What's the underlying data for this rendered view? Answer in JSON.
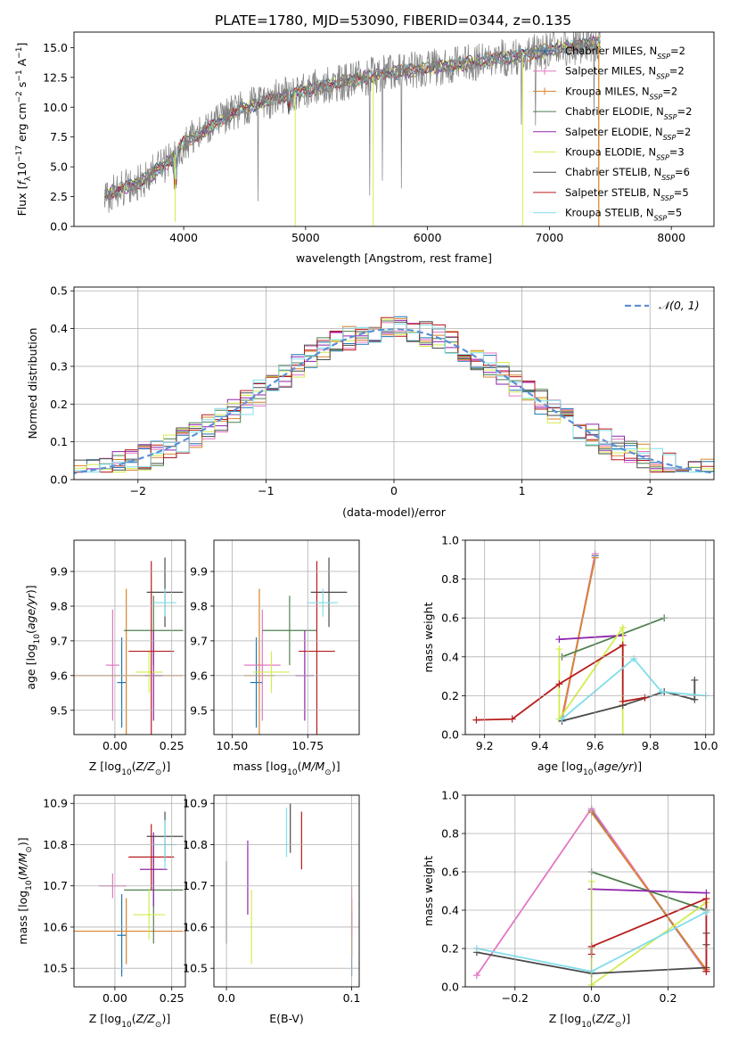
{
  "title": "PLATE=1780, MJD=53090, FIBERID=0344, z=0.135",
  "colors": {
    "Chabrier MILES": "#1f77b4",
    "Salpeter MILES": "#e377c2",
    "Kroupa MILES": "#d9822b",
    "Chabrier ELODIE": "#4f7f4f",
    "Salpeter ELODIE": "#8e24aa",
    "Kroupa ELODIE": "#d4ec4e",
    "Chabrier STELIB": "#4a4a4a",
    "Salpeter STELIB": "#b71c1c",
    "Kroupa STELIB": "#80deea",
    "normal": "#5b8fd6"
  },
  "chart_data": [
    {
      "id": "spectrum",
      "type": "line",
      "title": "PLATE=1780, MJD=53090, FIBERID=0344, z=0.135",
      "xlabel": "wavelength [Angstrom, rest frame]",
      "ylabel": "Flux [f",
      "ylabel_parts": [
        "Flux [f",
        "λ",
        "10",
        "−17",
        " erg cm",
        "−2",
        " s",
        "−1",
        " A",
        "−1",
        "]"
      ],
      "xlim": [
        3100,
        8350
      ],
      "ylim": [
        0,
        16.3
      ],
      "xticks": [
        "4000",
        "5000",
        "6000",
        "7000",
        "8000"
      ],
      "xtick_values": [
        4000,
        5000,
        6000,
        7000,
        8000
      ],
      "yticks": [
        "0.0",
        "2.5",
        "5.0",
        "7.5",
        "10.0",
        "12.5",
        "15.0"
      ],
      "ytick_values": [
        0,
        2.5,
        5,
        7.5,
        10,
        12.5,
        15
      ],
      "continuum": {
        "x": [
          3350,
          3500,
          3700,
          3900,
          4000,
          4200,
          4400,
          4600,
          4800,
          5000,
          5200,
          5400,
          5600,
          5800,
          6000,
          6200,
          6400,
          6600,
          6800,
          7000,
          7200,
          7400
        ],
        "y": [
          2.6,
          3.2,
          4.1,
          5.6,
          7.0,
          8.2,
          9.5,
          10.3,
          10.9,
          11.4,
          11.9,
          12.3,
          12.7,
          13.0,
          13.3,
          13.5,
          13.8,
          14.1,
          14.4,
          14.8,
          15.1,
          15.4
        ]
      },
      "series": [
        {
          "name": "Chabrier MILES",
          "label_suffix": "=2"
        },
        {
          "name": "Salpeter MILES",
          "label_suffix": "=2"
        },
        {
          "name": "Kroupa MILES",
          "label_suffix": "=2"
        },
        {
          "name": "Chabrier ELODIE",
          "label_suffix": "=2"
        },
        {
          "name": "Salpeter ELODIE",
          "label_suffix": "=2"
        },
        {
          "name": "Kroupa ELODIE",
          "label_suffix": "=3"
        },
        {
          "name": "Chabrier STELIB",
          "label_suffix": "=6"
        },
        {
          "name": "Salpeter STELIB",
          "label_suffix": "=5"
        },
        {
          "name": "Kroupa STELIB",
          "label_suffix": "=5"
        }
      ],
      "legend_placement": "right",
      "grid": false
    },
    {
      "id": "residuals",
      "type": "histogram",
      "xlabel": "(data-model)/error",
      "ylabel": "Normed distribution",
      "xlim": [
        -2.5,
        2.5
      ],
      "ylim": [
        0,
        0.51
      ],
      "xticks": [
        "−2",
        "−1",
        "0",
        "1",
        "2"
      ],
      "xtick_values": [
        -2,
        -1,
        0,
        1,
        2
      ],
      "yticks": [
        "0.0",
        "0.1",
        "0.2",
        "0.3",
        "0.4",
        "0.5"
      ],
      "ytick_values": [
        0,
        0.1,
        0.2,
        0.3,
        0.4,
        0.5
      ],
      "bin_width": 0.1,
      "legend": "𝒩(0, 1)",
      "legend_placement": "top-right",
      "grid": true
    },
    {
      "id": "age-vs-Z",
      "type": "errorbar",
      "xlabel": "Z [log10(Z/Z⊙)]",
      "ylabel": "age [log10(age/yr)]",
      "xlim": [
        -0.18,
        0.31
      ],
      "ylim": [
        9.43,
        9.99
      ],
      "xticks": [
        "0.00",
        "0.25"
      ],
      "xtick_values": [
        0,
        0.25
      ],
      "yticks": [
        "9.5",
        "9.6",
        "9.7",
        "9.8",
        "9.9"
      ],
      "ytick_values": [
        9.5,
        9.6,
        9.7,
        9.8,
        9.9
      ],
      "points": [
        {
          "series": "Chabrier MILES",
          "x": 0.03,
          "xerr": 0.02,
          "y": 9.58,
          "yerr": 0.13
        },
        {
          "series": "Salpeter MILES",
          "x": -0.01,
          "xerr": 0.03,
          "y": 9.63,
          "yerr": 0.16
        },
        {
          "series": "Kroupa MILES",
          "x": 0.05,
          "xerr": 0.25,
          "y": 9.6,
          "yerr": 0.25
        },
        {
          "series": "Chabrier ELODIE",
          "x": 0.17,
          "xerr": 0.13,
          "y": 9.73,
          "yerr": 0.1
        },
        {
          "series": "Salpeter ELODIE",
          "x": 0.17,
          "xerr": 0.04,
          "y": 9.6,
          "yerr": 0.13
        },
        {
          "series": "Kroupa ELODIE",
          "x": 0.15,
          "xerr": 0.06,
          "y": 9.61,
          "yerr": 0.06
        },
        {
          "series": "Chabrier STELIB",
          "x": 0.22,
          "xerr": 0.08,
          "y": 9.84,
          "yerr": 0.1
        },
        {
          "series": "Salpeter STELIB",
          "x": 0.16,
          "xerr": 0.1,
          "y": 9.67,
          "yerr": 0.26
        },
        {
          "series": "Kroupa STELIB",
          "x": 0.22,
          "xerr": 0.05,
          "y": 9.81,
          "yerr": 0.04
        }
      ]
    },
    {
      "id": "age-vs-mass",
      "type": "errorbar",
      "xlabel": "mass [log10(M/M⊙)]",
      "ylabel": "",
      "xlim": [
        10.44,
        10.92
      ],
      "ylim": [
        9.43,
        9.99
      ],
      "xticks": [
        "10.50",
        "10.75"
      ],
      "xtick_values": [
        10.5,
        10.75
      ],
      "yticks": [
        "9.5",
        "9.6",
        "9.7",
        "9.8",
        "9.9"
      ],
      "ytick_values": [
        9.5,
        9.6,
        9.7,
        9.8,
        9.9
      ],
      "points": [
        {
          "series": "Chabrier MILES",
          "x": 10.58,
          "xerr": 0.02,
          "y": 9.58,
          "yerr": 0.13
        },
        {
          "series": "Salpeter MILES",
          "x": 10.6,
          "xerr": 0.06,
          "y": 9.63,
          "yerr": 0.16
        },
        {
          "series": "Kroupa MILES",
          "x": 10.59,
          "xerr": 0.05,
          "y": 9.6,
          "yerr": 0.25
        },
        {
          "series": "Chabrier ELODIE",
          "x": 10.69,
          "xerr": 0.09,
          "y": 9.73,
          "yerr": 0.1
        },
        {
          "series": "Salpeter ELODIE",
          "x": 10.74,
          "xerr": 0.03,
          "y": 9.6,
          "yerr": 0.13
        },
        {
          "series": "Kroupa ELODIE",
          "x": 10.63,
          "xerr": 0.06,
          "y": 9.61,
          "yerr": 0.06
        },
        {
          "series": "Chabrier STELIB",
          "x": 10.82,
          "xerr": 0.06,
          "y": 9.84,
          "yerr": 0.1
        },
        {
          "series": "Salpeter STELIB",
          "x": 10.78,
          "xerr": 0.06,
          "y": 9.67,
          "yerr": 0.26
        },
        {
          "series": "Kroupa STELIB",
          "x": 10.8,
          "xerr": 0.05,
          "y": 9.81,
          "yerr": 0.04
        }
      ]
    },
    {
      "id": "mass-weight-vs-age",
      "type": "line",
      "xlabel": "age [log10(age/yr)]",
      "ylabel": "mass weight",
      "xlim": [
        9.13,
        10.03
      ],
      "ylim": [
        0,
        1.0
      ],
      "xticks": [
        "9.2",
        "9.4",
        "9.6",
        "9.8",
        "10.0"
      ],
      "xtick_values": [
        9.2,
        9.4,
        9.6,
        9.8,
        10.0
      ],
      "yticks": [
        "0.0",
        "0.2",
        "0.4",
        "0.6",
        "0.8",
        "1.0"
      ],
      "ytick_values": [
        0,
        0.2,
        0.4,
        0.6,
        0.8,
        1.0
      ],
      "series": [
        {
          "name": "Chabrier MILES",
          "x": [
            9.48,
            9.6
          ],
          "y": [
            0.08,
            0.92
          ]
        },
        {
          "name": "Salpeter MILES",
          "x": [
            9.48,
            9.6
          ],
          "y": [
            0.07,
            0.93
          ]
        },
        {
          "name": "Kroupa MILES",
          "x": [
            9.48,
            9.6
          ],
          "y": [
            0.09,
            0.91
          ]
        },
        {
          "name": "Chabrier ELODIE",
          "x": [
            9.48,
            9.85
          ],
          "y": [
            0.4,
            0.6
          ]
        },
        {
          "name": "Salpeter ELODIE",
          "x": [
            9.47,
            9.7
          ],
          "y": [
            0.49,
            0.51
          ]
        },
        {
          "name": "Kroupa ELODIE",
          "x": [
            9.47,
            9.47,
            9.7,
            9.7
          ],
          "y": [
            0.44,
            0.08,
            0.55,
            0.0
          ]
        },
        {
          "name": "Chabrier STELIB",
          "x": [
            9.48,
            9.7,
            9.85,
            9.96,
            9.96
          ],
          "y": [
            0.07,
            0.15,
            0.22,
            0.18,
            0.28
          ]
        },
        {
          "name": "Salpeter STELIB",
          "x": [
            9.17,
            9.3,
            9.47,
            9.7,
            9.7,
            9.78
          ],
          "y": [
            0.075,
            0.08,
            0.26,
            0.46,
            0.17,
            0.19
          ]
        },
        {
          "name": "Kroupa STELIB",
          "x": [
            9.48,
            9.74,
            9.84,
            10.0
          ],
          "y": [
            0.08,
            0.39,
            0.22,
            0.2
          ]
        }
      ]
    },
    {
      "id": "mass-vs-Z",
      "type": "errorbar",
      "xlabel": "Z [log10(Z/Z⊙)]",
      "ylabel": "mass [log10(M/M⊙)]",
      "xlim": [
        -0.18,
        0.31
      ],
      "ylim": [
        10.455,
        10.92
      ],
      "xticks": [
        "0.00",
        "0.25"
      ],
      "xtick_values": [
        0,
        0.25
      ],
      "yticks": [
        "10.5",
        "10.6",
        "10.7",
        "10.8",
        "10.9"
      ],
      "ytick_values": [
        10.5,
        10.6,
        10.7,
        10.8,
        10.9
      ],
      "points": [
        {
          "series": "Chabrier MILES",
          "x": 0.03,
          "xerr": 0.02,
          "y": 10.58,
          "yerr": 0.1
        },
        {
          "series": "Salpeter MILES",
          "x": -0.01,
          "xerr": 0.06,
          "y": 10.7,
          "yerr": 0.03
        },
        {
          "series": "Kroupa MILES",
          "x": 0.05,
          "xerr": 0.25,
          "y": 10.59,
          "yerr": 0.08
        },
        {
          "series": "Chabrier ELODIE",
          "x": 0.17,
          "xerr": 0.13,
          "y": 10.69,
          "yerr": 0.13
        },
        {
          "series": "Salpeter ELODIE",
          "x": 0.17,
          "xerr": 0.06,
          "y": 10.74,
          "yerr": 0.09
        },
        {
          "series": "Kroupa ELODIE",
          "x": 0.15,
          "xerr": 0.07,
          "y": 10.63,
          "yerr": 0.06
        },
        {
          "series": "Chabrier STELIB",
          "x": 0.22,
          "xerr": 0.08,
          "y": 10.82,
          "yerr": 0.06
        },
        {
          "series": "Salpeter STELIB",
          "x": 0.16,
          "xerr": 0.1,
          "y": 10.77,
          "yerr": 0.08
        },
        {
          "series": "Kroupa STELIB",
          "x": 0.22,
          "xerr": 0.05,
          "y": 10.8,
          "yerr": 0.06
        }
      ]
    },
    {
      "id": "mass-vs-EBV",
      "type": "errorbar",
      "xlabel": "E(B-V)",
      "ylabel": "",
      "xlim": [
        -0.01,
        0.106
      ],
      "ylim": [
        10.455,
        10.92
      ],
      "xticks": [
        "0.0",
        "0.1"
      ],
      "xtick_values": [
        0,
        0.1
      ],
      "yticks": [
        "10.5",
        "10.6",
        "10.7",
        "10.8",
        "10.9"
      ],
      "ytick_values": [
        10.5,
        10.6,
        10.7,
        10.8,
        10.9
      ],
      "points": [
        {
          "series": "Chabrier MILES",
          "x": 0.1,
          "xerr": 0,
          "y": 10.56,
          "yerr": 0.08
        },
        {
          "series": "Salpeter MILES",
          "x": 0.1,
          "xerr": 0,
          "y": 10.64,
          "yerr": 0.06
        },
        {
          "series": "Kroupa MILES",
          "x": 0.1,
          "xerr": 0,
          "y": 10.6,
          "yerr": 0.07
        },
        {
          "series": "Chabrier ELODIE",
          "x": 0.0,
          "xerr": 0,
          "y": 10.66,
          "yerr": 0.1
        },
        {
          "series": "Salpeter ELODIE",
          "x": 0.017,
          "xerr": 0,
          "y": 10.72,
          "yerr": 0.09
        },
        {
          "series": "Kroupa ELODIE",
          "x": 0.02,
          "xerr": 0,
          "y": 10.6,
          "yerr": 0.09
        },
        {
          "series": "Chabrier STELIB",
          "x": 0.051,
          "xerr": 0,
          "y": 10.84,
          "yerr": 0.06
        },
        {
          "series": "Salpeter STELIB",
          "x": 0.06,
          "xerr": 0,
          "y": 10.81,
          "yerr": 0.07
        },
        {
          "series": "Kroupa STELIB",
          "x": 0.048,
          "xerr": 0,
          "y": 10.83,
          "yerr": 0.06
        }
      ]
    },
    {
      "id": "mass-weight-vs-Z",
      "type": "line",
      "xlabel": "Z [log10(Z/Z⊙)]",
      "ylabel": "mass weight",
      "xlim": [
        -0.33,
        0.32
      ],
      "ylim": [
        0,
        1.0
      ],
      "xticks": [
        "−0.2",
        "0.0",
        "0.2"
      ],
      "xtick_values": [
        -0.2,
        0,
        0.2
      ],
      "yticks": [
        "0.0",
        "0.2",
        "0.4",
        "0.6",
        "0.8",
        "1.0"
      ],
      "ytick_values": [
        0,
        0.2,
        0.4,
        0.6,
        0.8,
        1.0
      ],
      "series": [
        {
          "name": "Chabrier MILES",
          "x": [
            0.0,
            0.3
          ],
          "y": [
            0.92,
            0.08
          ]
        },
        {
          "name": "Salpeter MILES",
          "x": [
            -0.3,
            0.0,
            0.3
          ],
          "y": [
            0.06,
            0.93,
            0.08
          ]
        },
        {
          "name": "Kroupa MILES",
          "x": [
            0.0,
            0.3
          ],
          "y": [
            0.91,
            0.09
          ]
        },
        {
          "name": "Chabrier ELODIE",
          "x": [
            0.0,
            0.3
          ],
          "y": [
            0.6,
            0.4
          ]
        },
        {
          "name": "Salpeter ELODIE",
          "x": [
            0.0,
            0.3
          ],
          "y": [
            0.51,
            0.49
          ]
        },
        {
          "name": "Kroupa ELODIE",
          "x": [
            0.0,
            0.0,
            0.0,
            0.3
          ],
          "y": [
            0.55,
            0.2,
            0.01,
            0.44
          ]
        },
        {
          "name": "Chabrier STELIB",
          "x": [
            -0.3,
            0.0,
            0.3,
            0.3,
            0.3
          ],
          "y": [
            0.18,
            0.07,
            0.1,
            0.22,
            0.28
          ]
        },
        {
          "name": "Salpeter STELIB",
          "x": [
            0.0,
            0.0,
            0.3,
            0.3
          ],
          "y": [
            0.17,
            0.21,
            0.46,
            0.08
          ]
        },
        {
          "name": "Kroupa STELIB",
          "x": [
            -0.3,
            0.0,
            0.3
          ],
          "y": [
            0.2,
            0.08,
            0.39
          ]
        }
      ]
    }
  ]
}
